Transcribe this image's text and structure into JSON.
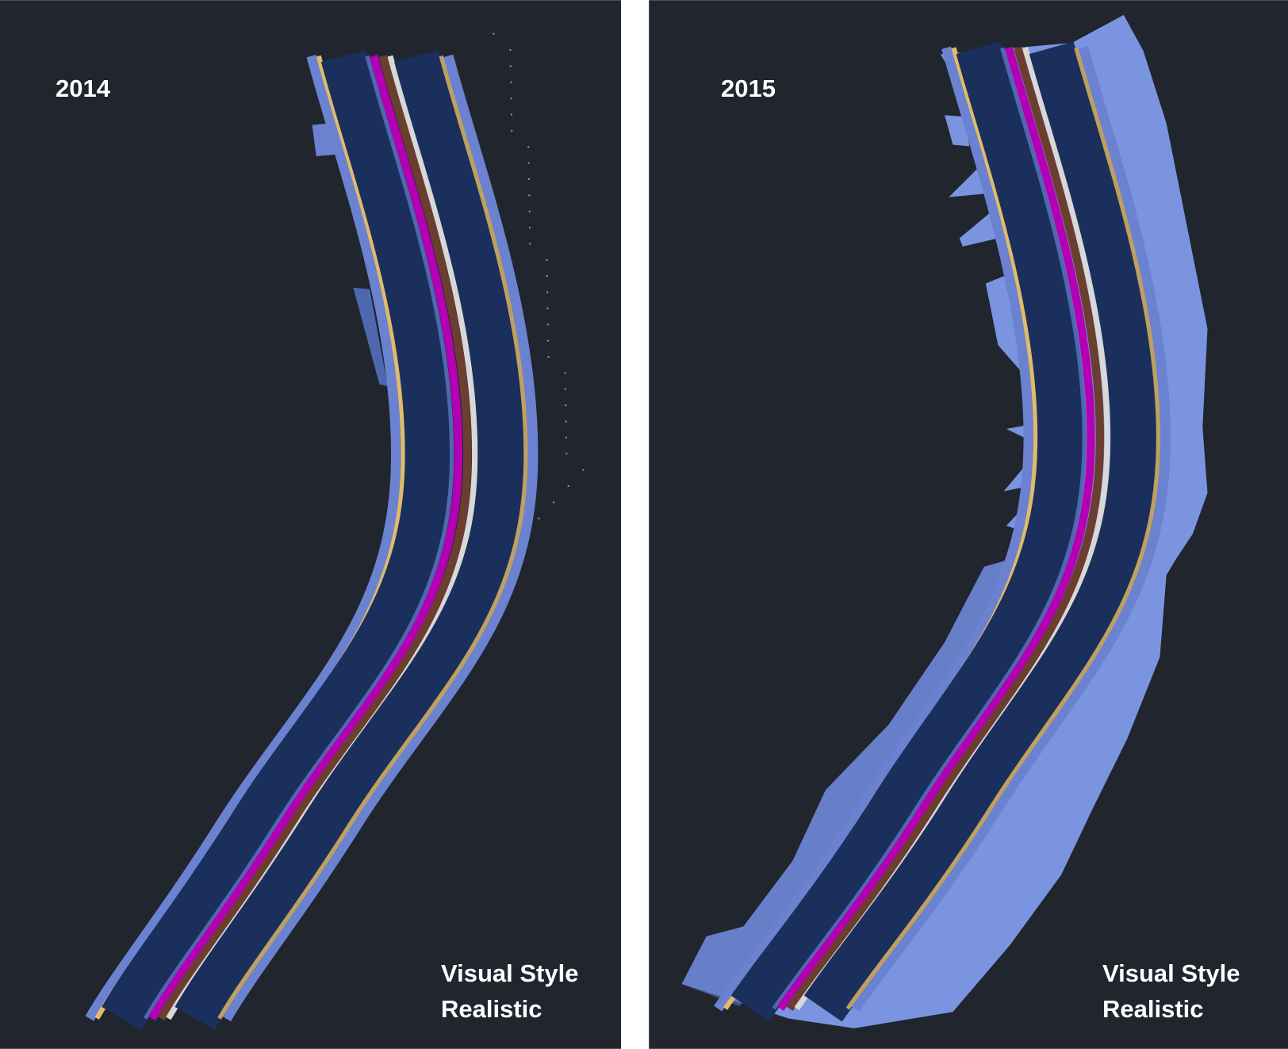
{
  "panels": [
    {
      "year": "2014",
      "style_line1": "Visual Style",
      "style_line2": "Realistic"
    },
    {
      "year": "2015",
      "style_line1": "Visual Style",
      "style_line2": "Realistic"
    }
  ],
  "colors": {
    "background": "#20252e",
    "divider": "#ffffff",
    "lane": "#1b2f5c",
    "edge": "#6a82d0",
    "terrain": "#7a94e0",
    "yellow_line": "#e0bb6a",
    "gold_line": "#c0a060",
    "magenta": "#b400b4",
    "brown": "#6b3e30",
    "white_line": "#d8d8d8",
    "mid_blue": "#4e68b0"
  }
}
